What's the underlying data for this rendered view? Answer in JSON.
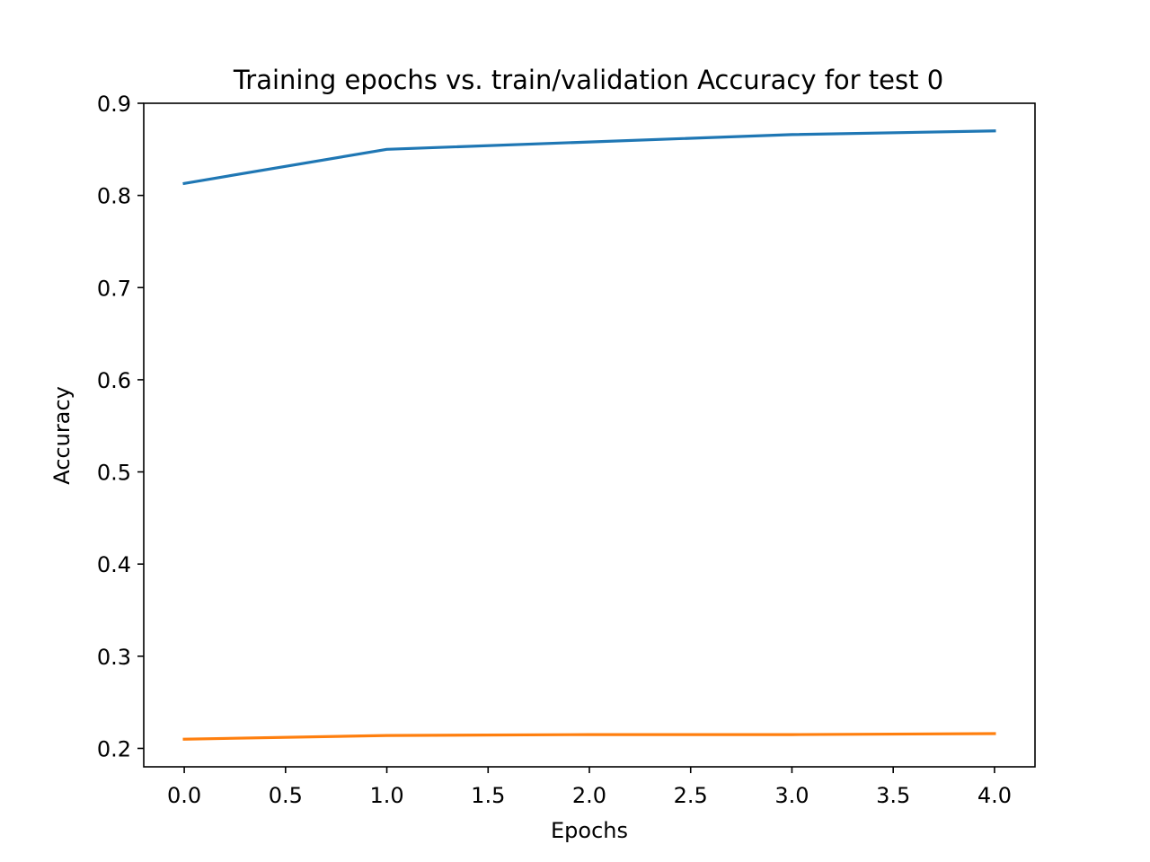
{
  "chart_data": {
    "type": "line",
    "title": "Training epochs vs. train/validation Accuracy for test 0",
    "xlabel": "Epochs",
    "ylabel": "Accuracy",
    "x": [
      0,
      1,
      2,
      3,
      4
    ],
    "xlim": [
      -0.2,
      4.2
    ],
    "ylim": [
      0.18,
      0.9
    ],
    "xticks": [
      0.0,
      0.5,
      1.0,
      1.5,
      2.0,
      2.5,
      3.0,
      3.5,
      4.0
    ],
    "xtick_labels": [
      "0.0",
      "0.5",
      "1.0",
      "1.5",
      "2.0",
      "2.5",
      "3.0",
      "3.5",
      "4.0"
    ],
    "yticks": [
      0.2,
      0.3,
      0.4,
      0.5,
      0.6,
      0.7,
      0.8,
      0.9
    ],
    "ytick_labels": [
      "0.2",
      "0.3",
      "0.4",
      "0.5",
      "0.6",
      "0.7",
      "0.8",
      "0.9"
    ],
    "grid": false,
    "legend": "none",
    "series": [
      {
        "values": [
          0.813,
          0.85,
          0.858,
          0.866,
          0.87
        ],
        "color": "#1f77b4"
      },
      {
        "values": [
          0.21,
          0.214,
          0.215,
          0.215,
          0.216
        ],
        "color": "#ff7f0e"
      }
    ]
  }
}
